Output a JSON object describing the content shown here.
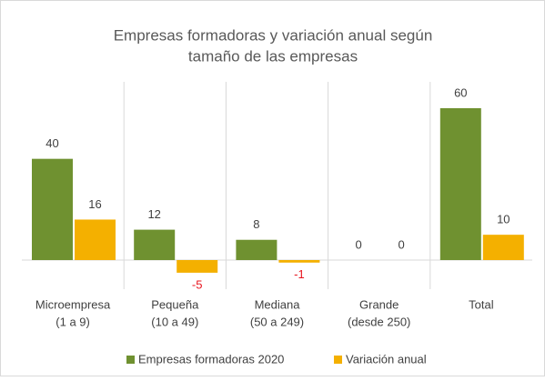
{
  "chart_data": {
    "type": "bar",
    "title": [
      "Empresas formadoras y variación anual según",
      "tamaño de las empresas"
    ],
    "categories": [
      [
        "Microempresa",
        "(1 a 9)"
      ],
      [
        "Pequeña",
        "(10 a 49)"
      ],
      [
        "Mediana",
        "(50 a 249)"
      ],
      [
        "Grande",
        "(desde 250)"
      ],
      [
        "Total"
      ]
    ],
    "series": [
      {
        "name": "Empresas formadoras 2020",
        "color": "#6f9130",
        "values": [
          40,
          12,
          8,
          0,
          60
        ]
      },
      {
        "name": "Variación anual",
        "color": "#f4b000",
        "values": [
          16,
          -5,
          -1,
          0,
          10
        ]
      }
    ],
    "negative_label_color": "#e8141e",
    "legend": "bottom"
  }
}
